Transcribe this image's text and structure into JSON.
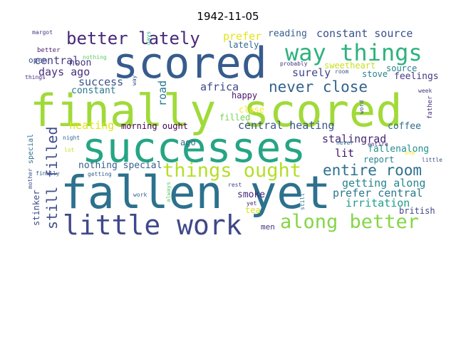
{
  "chart_data": {
    "type": "wordcloud",
    "title": "1942-11-05",
    "words": [
      {
        "text": "finally scored",
        "color": "#a0da39"
      },
      {
        "text": "successes",
        "color": "#25a584"
      },
      {
        "text": "fallen yet",
        "color": "#2c718e"
      },
      {
        "text": "scored",
        "color": "#365c8d"
      },
      {
        "text": "little work",
        "color": "#3f4889"
      },
      {
        "text": "way things",
        "color": "#2db27d"
      },
      {
        "text": "things ought",
        "color": "#b5de2b"
      },
      {
        "text": "along better",
        "color": "#86d549"
      },
      {
        "text": "better lately",
        "color": "#482979"
      },
      {
        "text": "never close",
        "color": "#33638d"
      },
      {
        "text": "entire room",
        "color": "#2d708e"
      },
      {
        "text": "still filled",
        "color": "#3e4c8a"
      },
      {
        "text": "constant source",
        "color": "#3b518b"
      },
      {
        "text": "central",
        "color": "#433e85"
      },
      {
        "text": "days ago",
        "color": "#472f7d"
      },
      {
        "text": "africa",
        "color": "#3f4788"
      },
      {
        "text": "prefer",
        "color": "#e5e419"
      },
      {
        "text": "lately",
        "color": "#31688e"
      },
      {
        "text": "reading",
        "color": "#355f8d"
      },
      {
        "text": "surely",
        "color": "#404588"
      },
      {
        "text": "success",
        "color": "#3a548c"
      },
      {
        "text": "noon",
        "color": "#46327e"
      },
      {
        "text": "stove",
        "color": "#26828e"
      },
      {
        "text": "feelings",
        "color": "#443983"
      },
      {
        "text": "road",
        "color": "#2a778e"
      },
      {
        "text": "constant",
        "color": "#2a788e"
      },
      {
        "text": "heating",
        "color": "#dde318"
      },
      {
        "text": "morning ought",
        "color": "#440154"
      },
      {
        "text": "central heating",
        "color": "#39558c"
      },
      {
        "text": "coffee",
        "color": "#2f6c8e"
      },
      {
        "text": "stalingrad",
        "color": "#482576"
      },
      {
        "text": "fallenalong",
        "color": "#21908d"
      },
      {
        "text": "getting along",
        "color": "#25858e"
      },
      {
        "text": "lit",
        "color": "#471164"
      },
      {
        "text": "report",
        "color": "#26828e"
      },
      {
        "text": "prefer central",
        "color": "#2a768e"
      },
      {
        "text": "irritation",
        "color": "#1f9e89"
      },
      {
        "text": "nothing special",
        "color": "#34618d"
      },
      {
        "text": "stinker",
        "color": "#3d4d8a"
      },
      {
        "text": "smoke",
        "color": "#482878"
      },
      {
        "text": "tea",
        "color": "#d8e219"
      },
      {
        "text": "men",
        "color": "#453581"
      },
      {
        "text": "british",
        "color": "#404688"
      },
      {
        "text": "sweetheart",
        "color": "#c8e020"
      },
      {
        "text": "source",
        "color": "#26818e"
      },
      {
        "text": "happy",
        "color": "#481668"
      },
      {
        "text": "close",
        "color": "#fde725"
      },
      {
        "text": "filled",
        "color": "#77d153"
      },
      {
        "text": "ago",
        "color": "#31688e"
      },
      {
        "text": "open",
        "color": "#3a538b"
      },
      {
        "text": "better",
        "color": "#481c6e"
      },
      {
        "text": "nothing",
        "color": "#5ec962"
      },
      {
        "text": "margot",
        "color": "#453781"
      },
      {
        "text": "days",
        "color": "#25ac82"
      },
      {
        "text": "probably",
        "color": "#462f7e"
      },
      {
        "text": "room",
        "color": "#3a538b"
      },
      {
        "text": "things",
        "color": "#472d7b"
      },
      {
        "text": "week",
        "color": "#443a83"
      },
      {
        "text": "word",
        "color": "#3b518b"
      },
      {
        "text": "father",
        "color": "#46337e"
      },
      {
        "text": "special",
        "color": "#2c718e"
      },
      {
        "text": "mother",
        "color": "#3c4f8a"
      },
      {
        "text": "night",
        "color": "#31688e"
      },
      {
        "text": "lot",
        "color": "#c2df23"
      },
      {
        "text": "finally",
        "color": "#38598c"
      },
      {
        "text": "getting",
        "color": "#355f8d"
      },
      {
        "text": "work",
        "color": "#33638d"
      },
      {
        "text": "always",
        "color": "#5ec962"
      },
      {
        "text": "rest",
        "color": "#3f4788"
      },
      {
        "text": "yet",
        "color": "#481a6c"
      },
      {
        "text": "still",
        "color": "#2c718e"
      },
      {
        "text": "never",
        "color": "#2e6e8e"
      },
      {
        "text": "entire",
        "color": "#46307e"
      },
      {
        "text": "one",
        "color": "#fde725"
      },
      {
        "text": "little",
        "color": "#3b528b"
      },
      {
        "text": "way",
        "color": "#3a548c"
      }
    ]
  }
}
